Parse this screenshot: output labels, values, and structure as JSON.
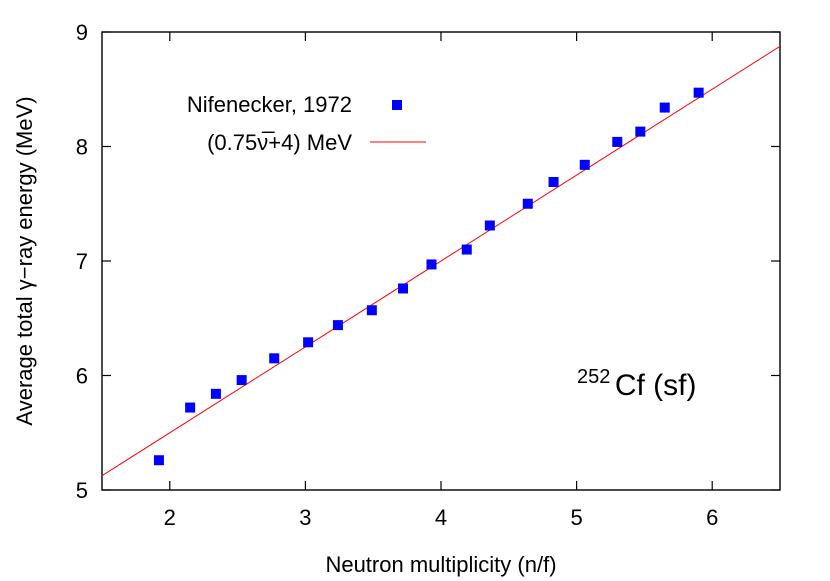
{
  "chart_data": {
    "type": "scatter",
    "xlabel": "Neutron multiplicity (n/f)",
    "ylabel": "Average total γ−ray energy (MeV)",
    "xlim": [
      1.5,
      6.5
    ],
    "ylim": [
      5,
      9
    ],
    "x_ticks": [
      2,
      3,
      4,
      5,
      6
    ],
    "y_ticks": [
      5,
      6,
      7,
      8,
      9
    ],
    "x_tick_labels": [
      "2",
      "3",
      "4",
      "5",
      "6"
    ],
    "y_tick_labels": [
      "5",
      "6",
      "7",
      "8",
      "9"
    ],
    "grid": false,
    "legend_position": "top-left",
    "annotation": {
      "sup": "252",
      "text": "Cf (sf)"
    },
    "series": [
      {
        "name": "Nifenecker, 1972",
        "kind": "points",
        "marker": "square",
        "color": "#0000ff",
        "x": [
          1.92,
          2.15,
          2.34,
          2.53,
          2.77,
          3.02,
          3.24,
          3.49,
          3.72,
          3.93,
          4.19,
          4.36,
          4.64,
          4.83,
          5.06,
          5.3,
          5.47,
          5.65,
          5.9
        ],
        "y": [
          5.26,
          5.72,
          5.84,
          5.96,
          6.15,
          6.29,
          6.44,
          6.57,
          6.76,
          6.97,
          7.1,
          7.31,
          7.5,
          7.69,
          7.84,
          8.04,
          8.13,
          8.34,
          8.47
        ]
      },
      {
        "name": "(0.75ν̅+4) MeV",
        "kind": "line",
        "color": "#ff0000",
        "slope": 0.75,
        "intercept": 4
      }
    ]
  }
}
